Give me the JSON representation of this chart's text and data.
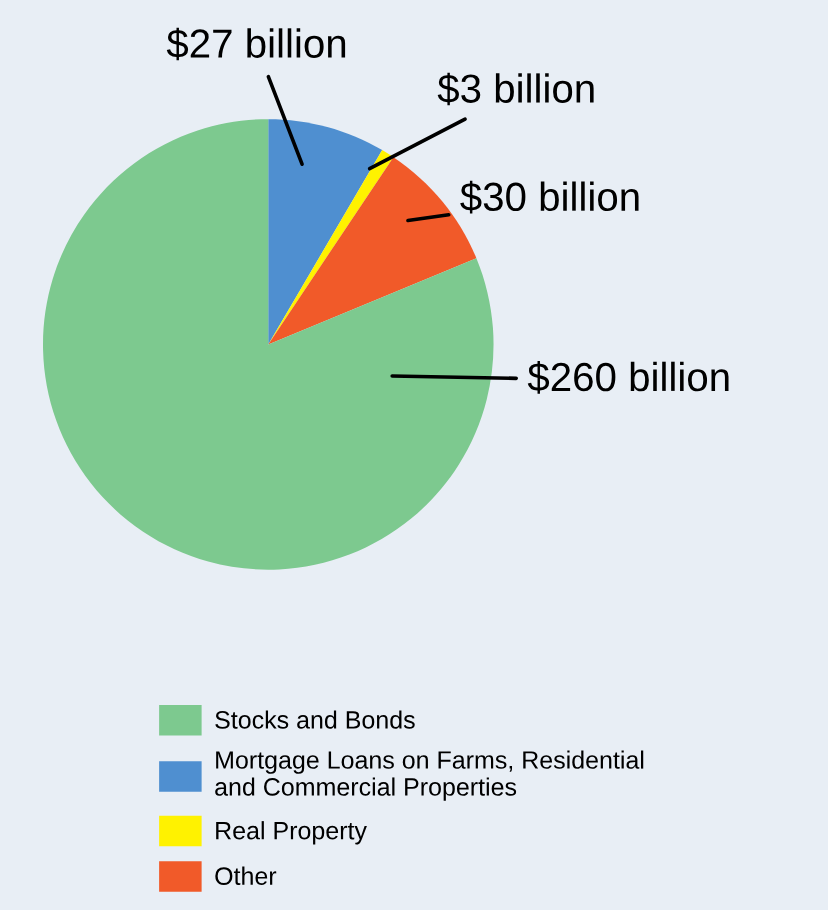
{
  "chart_data": {
    "type": "pie",
    "categories": [
      "Stocks and Bonds",
      "Mortgage Loans on Farms, Residential\nand Commercial Properties",
      "Real Property",
      "Other"
    ],
    "values": [
      260,
      27,
      3,
      30
    ],
    "colors": [
      "#7dc98f",
      "#4f8fd0",
      "#fff200",
      "#f15a29"
    ],
    "value_labels": [
      "$260 billion",
      "$27 billion",
      "$3 billion",
      "$30 billion"
    ],
    "legend": "bottom"
  }
}
